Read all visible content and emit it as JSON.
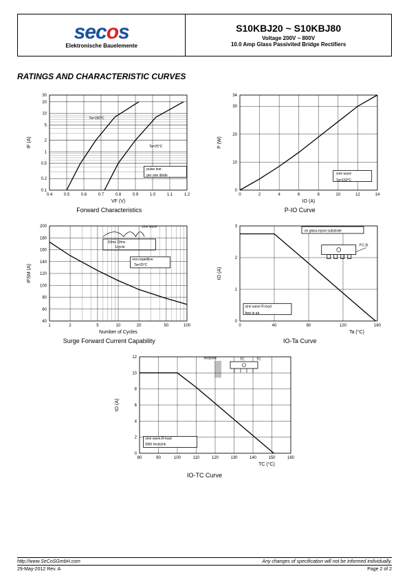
{
  "header": {
    "logo_main": "secos",
    "logo_sub": "Elektronische Bauelemente",
    "part_title": "S10KBJ20 ~ S10KBJ80",
    "subtitle1": "Voltage 200V ~ 800V",
    "subtitle2": "10.0 Amp Glass Passivited Bridge Rectifiers"
  },
  "section_title": "RATINGS AND CHARACTERISTIC CURVES",
  "chart1": {
    "type": "line-log",
    "caption": "Forward Characteristics",
    "ylabel": "IF (A)",
    "xlabel": "VF (V)",
    "yticks": [
      "0.1",
      "0.2",
      "0.5",
      "1",
      "2",
      "5",
      "10",
      "20",
      "30"
    ],
    "xticks": [
      "0.4",
      "0.5",
      "0.6",
      "0.7",
      "0.8",
      "0.9",
      "1.0",
      "1.1",
      "1.2"
    ],
    "annot1": "Ta=150°C",
    "annot2": "Ta=25°C",
    "annot3": "pulse test\nper one diode",
    "curves": {
      "c1": [
        [
          0.5,
          0.1
        ],
        [
          0.58,
          0.5
        ],
        [
          0.67,
          2
        ],
        [
          0.78,
          8
        ],
        [
          0.92,
          20
        ]
      ],
      "c2": [
        [
          0.72,
          0.1
        ],
        [
          0.8,
          0.5
        ],
        [
          0.9,
          2
        ],
        [
          1.02,
          8
        ],
        [
          1.18,
          20
        ]
      ]
    },
    "grid_color": "#000000",
    "line_color": "#000000",
    "background_color": "#ffffff"
  },
  "chart2": {
    "type": "line",
    "caption": "P-IO  Curve",
    "ylabel": "P (W)",
    "xlabel": "IO (A)",
    "yticks": [
      "0",
      "10",
      "20",
      "30",
      "34"
    ],
    "xticks": [
      "0",
      "2",
      "4",
      "6",
      "8",
      "10",
      "12",
      "14"
    ],
    "annot": "sine wave\nTa=150°C",
    "curve": [
      [
        0,
        0
      ],
      [
        2,
        4
      ],
      [
        4,
        8.5
      ],
      [
        6,
        13.5
      ],
      [
        8,
        19
      ],
      [
        10,
        24.5
      ],
      [
        12,
        30
      ],
      [
        14,
        34
      ]
    ],
    "grid_color": "#000000",
    "line_color": "#000000"
  },
  "chart3": {
    "type": "line-logx",
    "caption": "Surge Forward Current Capability",
    "ylabel": "IFSM (A)",
    "xlabel": "Number of Cycles",
    "yticks": [
      "40",
      "60",
      "80",
      "100",
      "120",
      "140",
      "160",
      "180",
      "200"
    ],
    "xticks": [
      "1",
      "2",
      "5",
      "10",
      "20",
      "50",
      "100"
    ],
    "annot1": "sine wave",
    "annot2": "10ms 10ms\n1cycle",
    "annot3": "non-repetitive\nTa=25°C",
    "curve": [
      [
        1,
        173
      ],
      [
        2,
        150
      ],
      [
        5,
        125
      ],
      [
        10,
        108
      ],
      [
        20,
        93
      ],
      [
        50,
        78
      ],
      [
        100,
        68
      ]
    ],
    "grid_color": "#000000",
    "line_color": "#000000"
  },
  "chart4": {
    "type": "line",
    "caption": "IO-Ta Curve",
    "ylabel": "IO (A)",
    "xlabel": "Ta (°C)",
    "yticks": [
      "0",
      "1",
      "2",
      "3"
    ],
    "xticks": [
      "0",
      "40",
      "80",
      "120",
      "160"
    ],
    "annot1": "on glass-epoxi substrate",
    "annot2": "sine wave R-load\nfree in air",
    "annot3": "P.C.B.",
    "curve": [
      [
        0,
        2.75
      ],
      [
        40,
        2.75
      ],
      [
        80,
        1.82
      ],
      [
        120,
        0.88
      ],
      [
        150,
        0.18
      ],
      [
        158,
        0
      ]
    ],
    "grid_color": "#000000",
    "line_color": "#000000"
  },
  "chart5": {
    "type": "line",
    "caption": "IO-TC  Curve",
    "ylabel": "IO (A)",
    "xlabel": "TC (°C)",
    "yticks": [
      "0",
      "2",
      "4",
      "6",
      "8",
      "10",
      "12"
    ],
    "xticks": [
      "80",
      "90",
      "100",
      "110",
      "120",
      "130",
      "140",
      "150",
      "160"
    ],
    "annot1": "heatsink",
    "annot2": "sine wave,R-load\nWith heatsink",
    "annot3": "TC",
    "curve": [
      [
        80,
        10
      ],
      [
        100,
        10
      ],
      [
        110,
        8.2
      ],
      [
        120,
        6.2
      ],
      [
        130,
        4.2
      ],
      [
        140,
        2.2
      ],
      [
        150,
        0.2
      ],
      [
        151,
        0
      ]
    ],
    "grid_color": "#000000",
    "line_color": "#000000"
  },
  "footer": {
    "url": "http://www.SeCoSGmbH.com",
    "disclaimer": "Any changes of specification will not be informed individually.",
    "date": "29-May-2012 Rev. A",
    "page": "Page  2  of  2"
  }
}
